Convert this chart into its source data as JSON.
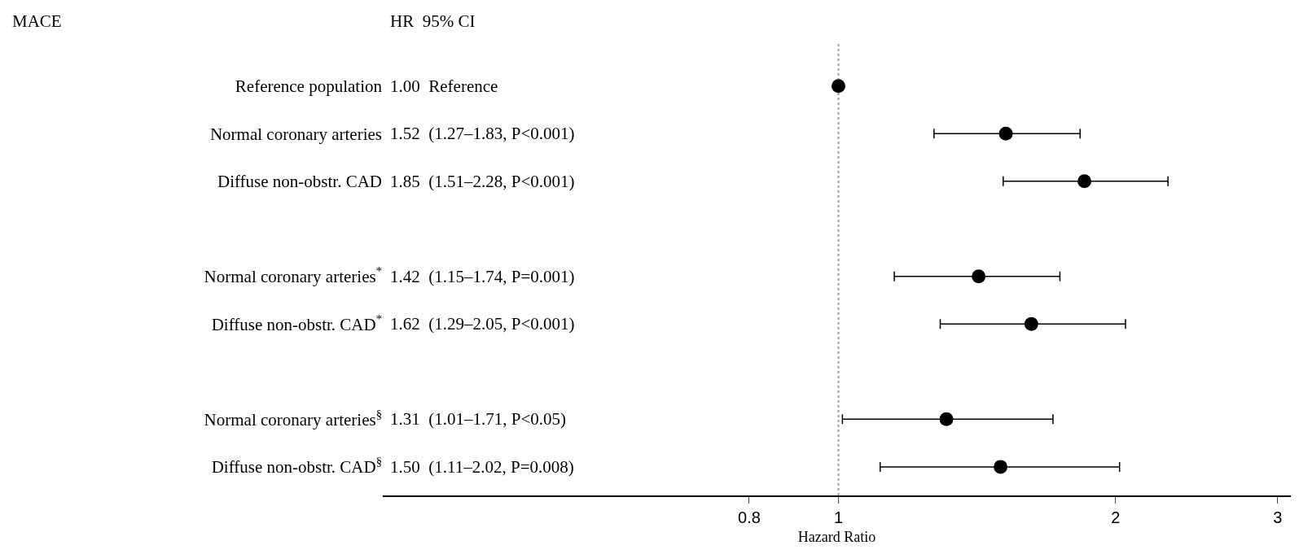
{
  "chart_data": {
    "type": "scatter",
    "orientation": "horizontal",
    "xlabel": "Hazard Ratio",
    "categories": [
      "Reference population",
      "Normal coronary arteries",
      "Diffuse non-obstr. CAD",
      null,
      "Normal coronary arteries$^{*}$",
      "Diffuse non-obstr. CAD$^{*}$",
      null,
      "Normal coronary arteries$^{§}$",
      "Diffuse non-obstr. CAD$^{§}$"
    ],
    "values": [
      1.0,
      1.52,
      1.85,
      null,
      1.42,
      1.62,
      null,
      1.31,
      1.5
    ],
    "errors": [
      null,
      [
        1.27,
        1.83
      ],
      [
        1.51,
        2.28
      ],
      null,
      [
        1.15,
        1.74
      ],
      [
        1.29,
        2.05
      ],
      null,
      [
        1.01,
        1.71
      ],
      [
        1.11,
        2.02
      ]
    ],
    "color": "#000000",
    "marker": "circle",
    "log": "x",
    "xlim": [
      0.32,
      3.1
    ],
    "xticks": [
      0.8,
      1,
      2,
      3
    ],
    "ref_lines": [
      {
        "axis": "x",
        "value": 1,
        "color": "#a0a0a0",
        "line_style": "dotted"
      }
    ],
    "annotations": [
      "MACE",
      "HR  95% CI",
      "1.00  Reference",
      "1.52  (1.27–1.83, P<0.001)",
      "1.85  (1.51–2.28, P<0.001)",
      "1.42  (1.15–1.74, P=0.001)",
      "1.62  (1.29–2.05, P<0.001)",
      "1.31  (1.01–1.71, P<0.05)",
      "1.50  (1.11–2.02, P=0.008)"
    ],
    "grid": false,
    "legend": false
  }
}
